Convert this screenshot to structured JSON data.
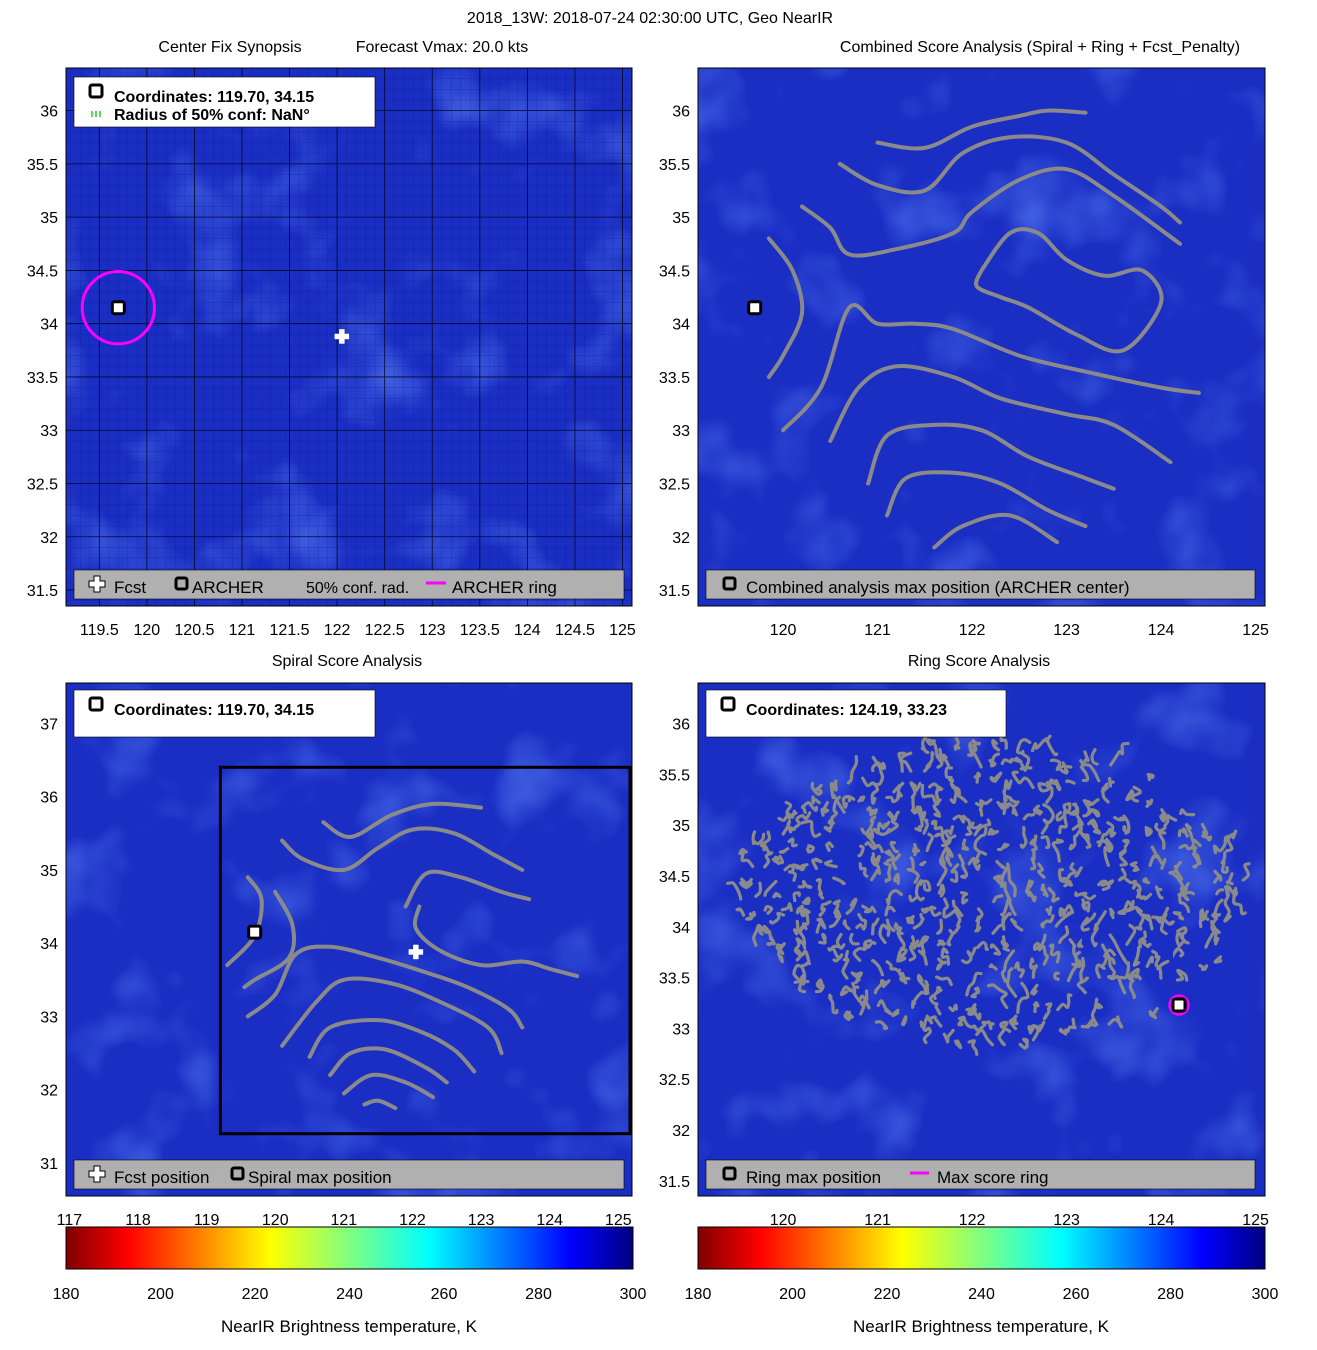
{
  "figure": {
    "suptitle": "2018_13W: 2018-07-24 02:30:00 UTC, Geo NearIR"
  },
  "colors": {
    "field": "#1a2ec4",
    "field_dark": "#101aa0",
    "field_light": "#2550e6",
    "contour": "#8a8a8a",
    "archer_ring": "#ff00ff",
    "legend_bg": "#b0b0b0",
    "frame": "#000000"
  },
  "panels": {
    "synopsis": {
      "title_left": "Center Fix Synopsis",
      "title_right": "Forecast Vmax: 20.0 kts",
      "info_line1": "Coordinates: 119.70, 34.15",
      "info_line2": "Radius of 50% conf: NaN°",
      "legend": {
        "fcst": "Fcst",
        "archer": "ARCHER",
        "conf": "50% conf. rad.",
        "ring": "ARCHER ring"
      },
      "x_ticks": [
        "119.5",
        "120",
        "120.5",
        "121",
        "121.5",
        "122",
        "122.5",
        "123",
        "123.5",
        "124",
        "124.5",
        "125"
      ],
      "y_ticks": [
        "31.5",
        "32",
        "32.5",
        "33",
        "33.5",
        "34",
        "34.5",
        "35",
        "35.5",
        "36"
      ]
    },
    "combined": {
      "title": "Combined Score Analysis (Spiral + Ring + Fcst_Penalty)",
      "legend": {
        "max": "Combined analysis max position (ARCHER center)"
      },
      "x_ticks": [
        "120",
        "121",
        "122",
        "123",
        "124",
        "125"
      ],
      "y_ticks": [
        "31.5",
        "32",
        "32.5",
        "33",
        "33.5",
        "34",
        "34.5",
        "35",
        "35.5",
        "36"
      ]
    },
    "spiral": {
      "title": "Spiral Score Analysis",
      "info_line1": "Coordinates: 119.70, 34.15",
      "legend": {
        "fcst": "Fcst position",
        "max": "Spiral max position"
      },
      "x_ticks": [
        "117",
        "118",
        "119",
        "120",
        "121",
        "122",
        "123",
        "124",
        "125"
      ],
      "y_ticks": [
        "31",
        "32",
        "33",
        "34",
        "35",
        "36",
        "37"
      ]
    },
    "ring": {
      "title": "Ring Score Analysis",
      "info_line1": "Coordinates: 124.19, 33.23",
      "legend": {
        "max": "Ring max position",
        "ring": "Max score ring"
      },
      "x_ticks": [
        "120",
        "121",
        "122",
        "123",
        "124",
        "125"
      ],
      "y_ticks": [
        "31.5",
        "32",
        "32.5",
        "33",
        "33.5",
        "34",
        "34.5",
        "35",
        "35.5",
        "36"
      ]
    }
  },
  "colorbars": {
    "left": {
      "label": "NearIR Brightness temperature, K",
      "ticks": [
        "180",
        "200",
        "220",
        "240",
        "260",
        "280",
        "300"
      ]
    },
    "right": {
      "label": "NearIR Brightness temperature, K",
      "ticks": [
        "180",
        "200",
        "220",
        "240",
        "260",
        "280",
        "300"
      ]
    }
  },
  "chart_data": [
    {
      "type": "heatmap",
      "title": "Center Fix Synopsis",
      "xlim": [
        119.15,
        125.1
      ],
      "ylim": [
        31.35,
        36.4
      ],
      "markers": [
        {
          "name": "ARCHER",
          "x": 119.7,
          "y": 34.15
        },
        {
          "name": "Fcst",
          "x": 122.05,
          "y": 33.88
        }
      ],
      "archer_ring_radius_deg": 0.38,
      "grid": true
    },
    {
      "type": "heatmap",
      "title": "Combined Score Analysis (Spiral + Ring + Fcst_Penalty)",
      "xlim": [
        119.1,
        125.1
      ],
      "ylim": [
        31.35,
        36.4
      ],
      "markers": [
        {
          "name": "Combined analysis max position (ARCHER center)",
          "x": 119.7,
          "y": 34.15
        }
      ],
      "contours": [
        [
          [
            121.0,
            35.7
          ],
          [
            121.5,
            35.65
          ],
          [
            122.0,
            35.85
          ],
          [
            122.5,
            35.95
          ],
          [
            122.8,
            36.0
          ],
          [
            123.2,
            35.98
          ]
        ],
        [
          [
            120.6,
            35.5
          ],
          [
            121.0,
            35.3
          ],
          [
            121.5,
            35.25
          ],
          [
            121.9,
            35.6
          ],
          [
            122.4,
            35.75
          ],
          [
            123.0,
            35.7
          ],
          [
            123.5,
            35.4
          ],
          [
            124.0,
            35.1
          ],
          [
            124.2,
            34.95
          ]
        ],
        [
          [
            120.2,
            35.1
          ],
          [
            120.5,
            34.9
          ],
          [
            120.7,
            34.65
          ],
          [
            121.2,
            34.7
          ],
          [
            121.8,
            34.85
          ],
          [
            122.0,
            35.05
          ],
          [
            122.5,
            35.35
          ],
          [
            123.0,
            35.45
          ],
          [
            123.5,
            35.2
          ],
          [
            124.2,
            34.75
          ]
        ],
        [
          [
            122.1,
            34.5
          ],
          [
            122.4,
            34.85
          ],
          [
            122.7,
            34.85
          ],
          [
            123.0,
            34.6
          ],
          [
            123.4,
            34.45
          ],
          [
            123.8,
            34.5
          ],
          [
            124.0,
            34.2
          ],
          [
            123.6,
            33.75
          ],
          [
            123.1,
            33.9
          ],
          [
            122.6,
            34.15
          ],
          [
            122.3,
            34.25
          ],
          [
            122.05,
            34.35
          ],
          [
            122.1,
            34.5
          ]
        ],
        [
          [
            119.85,
            34.8
          ],
          [
            120.1,
            34.5
          ],
          [
            120.2,
            34.1
          ],
          [
            120.0,
            33.7
          ],
          [
            119.85,
            33.5
          ]
        ],
        [
          [
            120.0,
            33.0
          ],
          [
            120.4,
            33.4
          ],
          [
            120.7,
            34.15
          ],
          [
            121.0,
            34.0
          ],
          [
            121.4,
            34.0
          ],
          [
            121.8,
            33.95
          ],
          [
            122.5,
            33.7
          ],
          [
            123.2,
            33.55
          ],
          [
            124.0,
            33.4
          ],
          [
            124.4,
            33.35
          ]
        ],
        [
          [
            120.5,
            32.9
          ],
          [
            120.8,
            33.4
          ],
          [
            121.2,
            33.6
          ],
          [
            121.8,
            33.5
          ],
          [
            122.3,
            33.3
          ],
          [
            123.0,
            33.15
          ],
          [
            123.5,
            33.05
          ],
          [
            124.1,
            32.7
          ]
        ],
        [
          [
            120.9,
            32.5
          ],
          [
            121.1,
            32.95
          ],
          [
            121.6,
            33.05
          ],
          [
            122.1,
            33.0
          ],
          [
            122.6,
            32.75
          ],
          [
            123.2,
            32.55
          ],
          [
            123.5,
            32.45
          ]
        ],
        [
          [
            121.1,
            32.2
          ],
          [
            121.3,
            32.55
          ],
          [
            121.8,
            32.6
          ],
          [
            122.3,
            32.5
          ],
          [
            122.8,
            32.25
          ],
          [
            123.2,
            32.1
          ]
        ],
        [
          [
            121.6,
            31.9
          ],
          [
            121.9,
            32.1
          ],
          [
            122.4,
            32.2
          ],
          [
            122.9,
            31.95
          ]
        ],
        [
          [
            121.8,
            31.65
          ],
          [
            122.2,
            31.6
          ]
        ]
      ]
    },
    {
      "type": "heatmap",
      "title": "Spiral Score Analysis",
      "xlim": [
        116.95,
        125.2
      ],
      "ylim": [
        30.55,
        37.55
      ],
      "markers": [
        {
          "name": "Spiral max position",
          "x": 119.7,
          "y": 34.15
        },
        {
          "name": "Fcst position",
          "x": 122.05,
          "y": 33.88
        }
      ],
      "search_box": {
        "x": [
          119.2,
          125.2
        ],
        "y": [
          31.4,
          36.4
        ]
      },
      "contours": [
        [
          [
            120.7,
            35.65
          ],
          [
            121.1,
            35.45
          ],
          [
            121.7,
            35.75
          ],
          [
            122.3,
            35.9
          ],
          [
            123.0,
            35.85
          ]
        ],
        [
          [
            120.1,
            35.4
          ],
          [
            120.4,
            35.15
          ],
          [
            121.0,
            35.0
          ],
          [
            121.5,
            35.3
          ],
          [
            122.0,
            35.55
          ],
          [
            122.6,
            35.5
          ],
          [
            123.2,
            35.2
          ],
          [
            123.6,
            35.0
          ]
        ],
        [
          [
            121.9,
            34.5
          ],
          [
            122.2,
            34.95
          ],
          [
            122.7,
            34.9
          ],
          [
            123.3,
            34.7
          ],
          [
            123.7,
            34.6
          ]
        ],
        [
          [
            119.6,
            34.9
          ],
          [
            119.8,
            34.6
          ],
          [
            119.7,
            34.1
          ],
          [
            119.3,
            33.7
          ]
        ],
        [
          [
            120.0,
            34.7
          ],
          [
            120.25,
            34.25
          ],
          [
            120.2,
            33.8
          ],
          [
            119.7,
            33.5
          ],
          [
            119.55,
            33.4
          ]
        ],
        [
          [
            122.1,
            34.5
          ],
          [
            122.05,
            34.2
          ],
          [
            122.4,
            33.9
          ],
          [
            123.0,
            33.7
          ],
          [
            123.6,
            33.75
          ],
          [
            124.0,
            33.65
          ],
          [
            124.4,
            33.55
          ]
        ],
        [
          [
            119.6,
            33.0
          ],
          [
            120.0,
            33.3
          ],
          [
            120.3,
            33.85
          ],
          [
            120.8,
            33.95
          ],
          [
            121.5,
            33.8
          ],
          [
            122.2,
            33.6
          ],
          [
            122.8,
            33.4
          ],
          [
            123.4,
            33.1
          ],
          [
            123.6,
            32.85
          ]
        ],
        [
          [
            120.1,
            32.6
          ],
          [
            120.6,
            33.2
          ],
          [
            121.0,
            33.5
          ],
          [
            121.7,
            33.45
          ],
          [
            122.4,
            33.2
          ],
          [
            123.1,
            32.85
          ],
          [
            123.3,
            32.5
          ]
        ],
        [
          [
            120.5,
            32.45
          ],
          [
            120.8,
            32.85
          ],
          [
            121.5,
            32.95
          ],
          [
            122.1,
            32.8
          ],
          [
            122.6,
            32.55
          ],
          [
            122.9,
            32.25
          ]
        ],
        [
          [
            120.8,
            32.2
          ],
          [
            121.1,
            32.5
          ],
          [
            121.6,
            32.55
          ],
          [
            122.2,
            32.3
          ],
          [
            122.5,
            32.1
          ]
        ],
        [
          [
            121.0,
            31.95
          ],
          [
            121.4,
            32.2
          ],
          [
            121.9,
            32.1
          ],
          [
            122.3,
            31.9
          ]
        ],
        [
          [
            121.3,
            31.8
          ],
          [
            121.5,
            31.85
          ],
          [
            121.75,
            31.75
          ]
        ]
      ]
    },
    {
      "type": "heatmap",
      "title": "Ring Score Analysis",
      "xlim": [
        119.1,
        125.1
      ],
      "ylim": [
        31.35,
        36.4
      ],
      "markers": [
        {
          "name": "Ring max position",
          "x": 124.19,
          "y": 33.23
        }
      ],
      "max_score_ring_radius_deg": 0.1,
      "ring_field_extent": {
        "x": [
          119.5,
          124.9
        ],
        "y": [
          32.8,
          35.8
        ]
      }
    }
  ]
}
